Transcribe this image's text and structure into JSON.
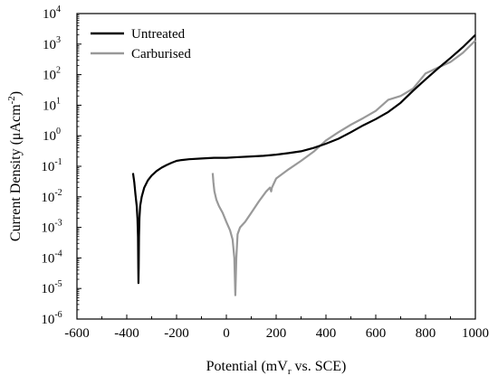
{
  "chart_data": {
    "type": "line",
    "xlabel": "Potential (mV",
    "xlabel_sub": "r",
    "xlabel_rest": " vs. SCE)",
    "ylabel": "Current Density (μAcm",
    "ylabel_sup": "-2",
    "ylabel_rest": ")",
    "x_scale": "linear",
    "y_scale": "log",
    "xlim": [
      -600,
      1000
    ],
    "ylim_exp": [
      -6,
      4
    ],
    "x_ticks": [
      -600,
      -400,
      -200,
      0,
      200,
      400,
      600,
      800,
      1000
    ],
    "x_tick_labels": [
      "-600",
      "-400",
      "-200",
      "0",
      "200",
      "400",
      "600",
      "800",
      "1000"
    ],
    "y_ticks_exp": [
      -6,
      -5,
      -4,
      -3,
      -2,
      -1,
      0,
      1,
      2,
      3,
      4
    ],
    "y_tick_base": "10",
    "y_tick_exps": [
      "-6",
      "-5",
      "-4",
      "-3",
      "-2",
      "-1",
      "0",
      "1",
      "2",
      "3",
      "4"
    ],
    "grid": false,
    "legend_position": "top-left",
    "series": [
      {
        "name": "Untreated",
        "color": "#000000",
        "points": [
          [
            -375,
            0.06
          ],
          [
            -370,
            0.03
          ],
          [
            -365,
            0.012
          ],
          [
            -360,
            0.005
          ],
          [
            -357,
            0.002
          ],
          [
            -355,
            0.0005
          ],
          [
            -354,
            5e-05
          ],
          [
            -353,
            1.5e-05
          ],
          [
            -352,
            5e-05
          ],
          [
            -351,
            0.0005
          ],
          [
            -349,
            0.002
          ],
          [
            -346,
            0.005
          ],
          [
            -340,
            0.01
          ],
          [
            -330,
            0.02
          ],
          [
            -315,
            0.035
          ],
          [
            -300,
            0.05
          ],
          [
            -280,
            0.07
          ],
          [
            -260,
            0.09
          ],
          [
            -240,
            0.11
          ],
          [
            -220,
            0.13
          ],
          [
            -200,
            0.15
          ],
          [
            -180,
            0.16
          ],
          [
            -150,
            0.17
          ],
          [
            -100,
            0.18
          ],
          [
            -50,
            0.19
          ],
          [
            0,
            0.19
          ],
          [
            50,
            0.2
          ],
          [
            100,
            0.21
          ],
          [
            150,
            0.22
          ],
          [
            200,
            0.24
          ],
          [
            250,
            0.27
          ],
          [
            300,
            0.31
          ],
          [
            350,
            0.4
          ],
          [
            400,
            0.55
          ],
          [
            450,
            0.8
          ],
          [
            500,
            1.3
          ],
          [
            550,
            2.2
          ],
          [
            600,
            3.5
          ],
          [
            650,
            6
          ],
          [
            700,
            12
          ],
          [
            750,
            30
          ],
          [
            800,
            70
          ],
          [
            850,
            160
          ],
          [
            900,
            350
          ],
          [
            950,
            800
          ],
          [
            1000,
            2000
          ]
        ]
      },
      {
        "name": "Carburised",
        "color": "#999999",
        "points": [
          [
            -55,
            0.06
          ],
          [
            -52,
            0.03
          ],
          [
            -48,
            0.015
          ],
          [
            -40,
            0.008
          ],
          [
            -30,
            0.005
          ],
          [
            -15,
            0.003
          ],
          [
            0,
            0.0015
          ],
          [
            15,
            0.0008
          ],
          [
            25,
            0.0004
          ],
          [
            32,
            0.0001
          ],
          [
            36,
            6e-06
          ],
          [
            40,
            0.0001
          ],
          [
            45,
            0.0006
          ],
          [
            55,
            0.001
          ],
          [
            75,
            0.0015
          ],
          [
            100,
            0.003
          ],
          [
            130,
            0.007
          ],
          [
            160,
            0.015
          ],
          [
            175,
            0.02
          ],
          [
            180,
            0.015
          ],
          [
            183,
            0.02
          ],
          [
            200,
            0.04
          ],
          [
            250,
            0.08
          ],
          [
            300,
            0.15
          ],
          [
            350,
            0.3
          ],
          [
            400,
            0.7
          ],
          [
            450,
            1.3
          ],
          [
            500,
            2.3
          ],
          [
            550,
            3.8
          ],
          [
            600,
            6.5
          ],
          [
            650,
            15
          ],
          [
            700,
            20
          ],
          [
            750,
            35
          ],
          [
            800,
            110
          ],
          [
            850,
            170
          ],
          [
            900,
            260
          ],
          [
            950,
            520
          ],
          [
            1000,
            1300
          ]
        ]
      }
    ]
  }
}
